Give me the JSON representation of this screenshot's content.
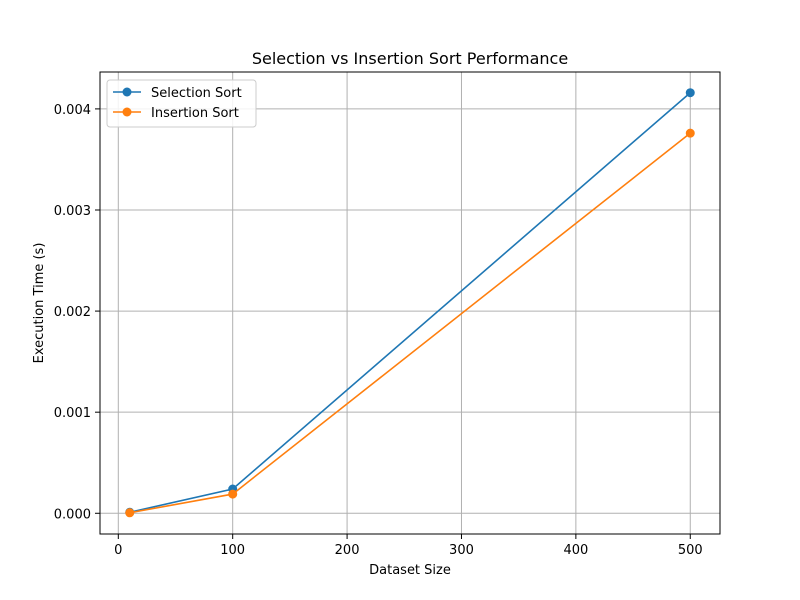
{
  "chart_data": {
    "type": "line",
    "title": "Selection vs Insertion Sort Performance",
    "xlabel": "Dataset Size",
    "ylabel": "Execution Time (s)",
    "x": [
      10,
      100,
      500
    ],
    "xlim": [
      -16,
      526
    ],
    "ylim": [
      -0.000205,
      0.004365
    ],
    "xticks": [
      0,
      100,
      200,
      300,
      400,
      500
    ],
    "xtick_labels": [
      "0",
      "100",
      "200",
      "300",
      "400",
      "500"
    ],
    "yticks": [
      0.0,
      0.001,
      0.002,
      0.003,
      0.004
    ],
    "ytick_labels": [
      "0.000",
      "0.001",
      "0.002",
      "0.003",
      "0.004"
    ],
    "grid": true,
    "legend_position": "top-left",
    "series": [
      {
        "name": "Selection Sort",
        "values": [
          1e-05,
          0.00024,
          0.00416
        ],
        "color": "#1f77b4",
        "marker": "circle"
      },
      {
        "name": "Insertion Sort",
        "values": [
          5e-06,
          0.00019,
          0.00376
        ],
        "color": "#ff7f0e",
        "marker": "circle"
      }
    ]
  }
}
